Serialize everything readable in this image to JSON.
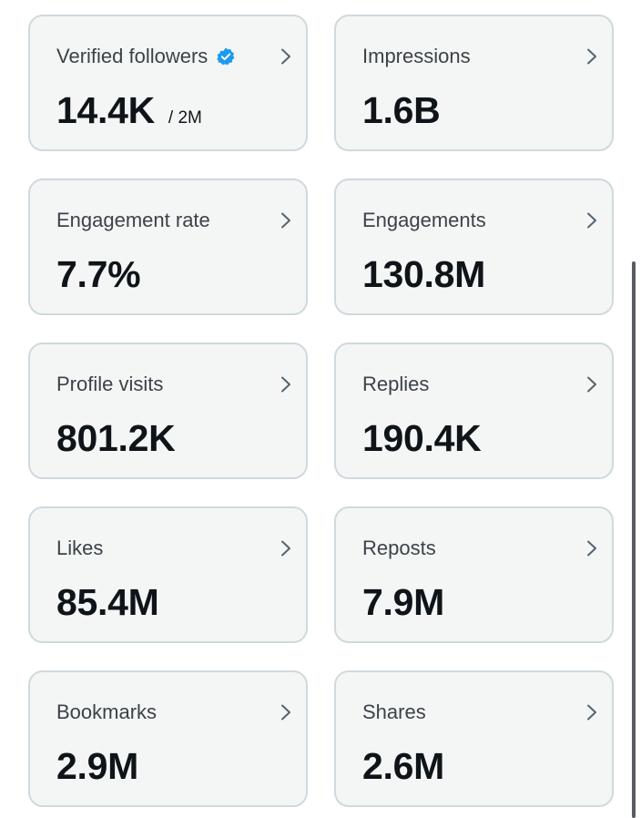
{
  "metrics": [
    {
      "label": "Verified followers",
      "value": "14.4K",
      "sub": "/ 2M",
      "verified": true
    },
    {
      "label": "Impressions",
      "value": "1.6B"
    },
    {
      "label": "Engagement rate",
      "value": "7.7%"
    },
    {
      "label": "Engagements",
      "value": "130.8M"
    },
    {
      "label": "Profile visits",
      "value": "801.2K"
    },
    {
      "label": "Replies",
      "value": "190.4K"
    },
    {
      "label": "Likes",
      "value": "85.4M"
    },
    {
      "label": "Reposts",
      "value": "7.9M"
    },
    {
      "label": "Bookmarks",
      "value": "2.9M"
    },
    {
      "label": "Shares",
      "value": "2.6M"
    }
  ],
  "icons": {
    "verified": "verified-badge-icon",
    "chevron": "chevron-right-icon"
  },
  "colors": {
    "card_background": "#f4f6f6",
    "card_border": "#cfd9de",
    "label_text": "#3b4248",
    "value_text": "#0f1419",
    "verified_blue": "#1d9bf0",
    "chevron": "#536471"
  }
}
